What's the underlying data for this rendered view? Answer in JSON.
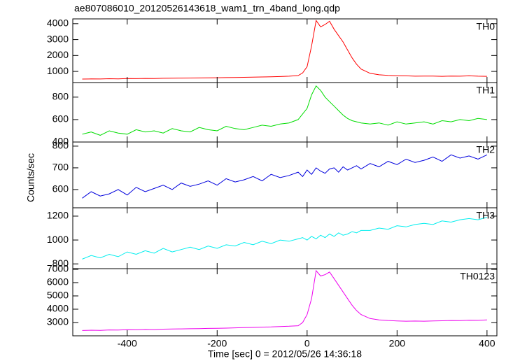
{
  "chart_data": [
    {
      "type": "line",
      "title": "ae807086010_20120526143618_wam1_trn_4band_long.qdp",
      "x": [
        -500,
        -480,
        -460,
        -440,
        -420,
        -400,
        -380,
        -360,
        -340,
        -320,
        -300,
        -280,
        -260,
        -240,
        -220,
        -200,
        -180,
        -160,
        -140,
        -120,
        -100,
        -80,
        -60,
        -40,
        -20,
        -10,
        0,
        10,
        20,
        30,
        40,
        50,
        60,
        70,
        80,
        90,
        100,
        110,
        120,
        140,
        160,
        180,
        200,
        220,
        240,
        260,
        280,
        300,
        320,
        340,
        360,
        380,
        400
      ],
      "series": [
        {
          "name": "TH0",
          "color": "#ff0000",
          "values": [
            520,
            530,
            525,
            540,
            535,
            550,
            545,
            560,
            555,
            570,
            575,
            580,
            585,
            590,
            600,
            605,
            610,
            620,
            630,
            640,
            650,
            660,
            680,
            700,
            740,
            900,
            1300,
            2600,
            4200,
            3800,
            3950,
            4150,
            3650,
            3250,
            2850,
            2350,
            1850,
            1450,
            1150,
            880,
            790,
            750,
            730,
            720,
            700,
            710,
            705,
            690,
            710,
            700,
            720,
            700,
            690
          ]
        }
      ],
      "xlim": [
        -521,
        422
      ],
      "xticks": [
        -400,
        -200,
        0,
        200,
        400
      ],
      "ylim": [
        300,
        4300
      ],
      "yticks": [
        1000,
        2000,
        3000,
        4000
      ]
    },
    {
      "type": "line",
      "x": [
        -500,
        -480,
        -460,
        -440,
        -420,
        -400,
        -380,
        -360,
        -340,
        -320,
        -300,
        -280,
        -260,
        -240,
        -220,
        -200,
        -180,
        -160,
        -140,
        -120,
        -100,
        -80,
        -60,
        -40,
        -20,
        -10,
        0,
        10,
        20,
        30,
        40,
        50,
        60,
        70,
        80,
        90,
        100,
        110,
        120,
        140,
        160,
        180,
        200,
        220,
        240,
        260,
        280,
        300,
        320,
        340,
        360,
        380,
        400
      ],
      "series": [
        {
          "name": "TH1",
          "color": "#00dd00",
          "values": [
            470,
            490,
            460,
            500,
            480,
            470,
            510,
            490,
            500,
            480,
            520,
            500,
            490,
            530,
            510,
            500,
            540,
            520,
            510,
            530,
            550,
            540,
            560,
            570,
            600,
            650,
            700,
            820,
            900,
            860,
            800,
            760,
            720,
            680,
            640,
            610,
            590,
            580,
            570,
            560,
            570,
            550,
            580,
            560,
            570,
            580,
            560,
            590,
            580,
            600,
            590,
            610,
            600
          ]
        }
      ],
      "xlim": [
        -521,
        422
      ],
      "xticks": [
        -400,
        -200,
        0,
        200,
        400
      ],
      "ylim": [
        400,
        930
      ],
      "yticks": [
        400,
        600,
        800
      ]
    },
    {
      "type": "line",
      "ylabel": "Counts/sec",
      "x": [
        -500,
        -480,
        -460,
        -440,
        -420,
        -400,
        -380,
        -360,
        -340,
        -320,
        -300,
        -280,
        -260,
        -240,
        -220,
        -200,
        -180,
        -160,
        -140,
        -120,
        -100,
        -80,
        -60,
        -40,
        -20,
        -10,
        0,
        10,
        20,
        30,
        40,
        50,
        60,
        70,
        80,
        90,
        100,
        110,
        120,
        140,
        160,
        180,
        200,
        220,
        240,
        260,
        280,
        300,
        320,
        340,
        360,
        380,
        400
      ],
      "series": [
        {
          "name": "TH2",
          "color": "#0000dd",
          "values": [
            560,
            590,
            570,
            580,
            600,
            575,
            610,
            590,
            605,
            620,
            600,
            630,
            615,
            625,
            640,
            620,
            650,
            635,
            645,
            660,
            640,
            670,
            655,
            665,
            680,
            660,
            690,
            670,
            700,
            685,
            675,
            695,
            700,
            680,
            705,
            690,
            700,
            710,
            695,
            720,
            705,
            730,
            715,
            740,
            725,
            735,
            750,
            730,
            760,
            745,
            755,
            740,
            760
          ]
        }
      ],
      "xlim": [
        -521,
        422
      ],
      "xticks": [
        -400,
        -200,
        0,
        200,
        400
      ],
      "ylim": [
        516,
        819
      ],
      "yticks": [
        600,
        700,
        800
      ]
    },
    {
      "type": "line",
      "x": [
        -500,
        -480,
        -460,
        -440,
        -420,
        -400,
        -380,
        -360,
        -340,
        -320,
        -300,
        -280,
        -260,
        -240,
        -220,
        -200,
        -180,
        -160,
        -140,
        -120,
        -100,
        -80,
        -60,
        -40,
        -20,
        -10,
        0,
        10,
        20,
        30,
        40,
        50,
        60,
        70,
        80,
        90,
        100,
        110,
        120,
        140,
        160,
        180,
        200,
        220,
        240,
        260,
        280,
        300,
        320,
        340,
        360,
        380,
        400
      ],
      "series": [
        {
          "name": "TH3",
          "color": "#00eeee",
          "values": [
            840,
            870,
            850,
            880,
            860,
            900,
            880,
            910,
            890,
            930,
            900,
            920,
            940,
            920,
            950,
            930,
            960,
            950,
            980,
            960,
            990,
            970,
            1000,
            990,
            1010,
            1020,
            1000,
            1030,
            1010,
            1040,
            1020,
            1050,
            1030,
            1060,
            1040,
            1050,
            1070,
            1060,
            1080,
            1080,
            1100,
            1090,
            1120,
            1110,
            1130,
            1140,
            1130,
            1160,
            1150,
            1170,
            1180,
            1170,
            1190
          ]
        }
      ],
      "xlim": [
        -521,
        422
      ],
      "xticks": [
        -400,
        -200,
        0,
        200,
        400
      ],
      "ylim": [
        760,
        1270
      ],
      "yticks": [
        800,
        1000,
        1200
      ]
    },
    {
      "type": "line",
      "xlabel": "Time [sec] 0 = 2012/05/26 14:36:18",
      "x": [
        -500,
        -480,
        -460,
        -440,
        -420,
        -400,
        -380,
        -360,
        -340,
        -320,
        -300,
        -280,
        -260,
        -240,
        -220,
        -200,
        -180,
        -160,
        -140,
        -120,
        -100,
        -80,
        -60,
        -40,
        -20,
        -10,
        0,
        10,
        20,
        30,
        40,
        50,
        60,
        70,
        80,
        90,
        100,
        110,
        120,
        140,
        160,
        180,
        200,
        220,
        240,
        260,
        280,
        300,
        320,
        340,
        360,
        380,
        400
      ],
      "series": [
        {
          "name": "TH0123",
          "color": "#ee00ee",
          "values": [
            2400,
            2420,
            2410,
            2440,
            2430,
            2460,
            2450,
            2480,
            2470,
            2500,
            2510,
            2520,
            2530,
            2540,
            2560,
            2570,
            2580,
            2600,
            2620,
            2630,
            2650,
            2670,
            2700,
            2720,
            2760,
            3000,
            3600,
            4800,
            6900,
            6500,
            6600,
            6800,
            6300,
            5800,
            5300,
            4800,
            4300,
            3900,
            3600,
            3300,
            3200,
            3150,
            3120,
            3100,
            3110,
            3100,
            3120,
            3130,
            3150,
            3140,
            3170,
            3160,
            3200
          ]
        }
      ],
      "xlim": [
        -521,
        422
      ],
      "xticks": [
        -400,
        -200,
        0,
        200,
        400
      ],
      "ylim": [
        2000,
        7050
      ],
      "yticks": [
        3000,
        4000,
        5000,
        6000,
        7000
      ]
    }
  ]
}
